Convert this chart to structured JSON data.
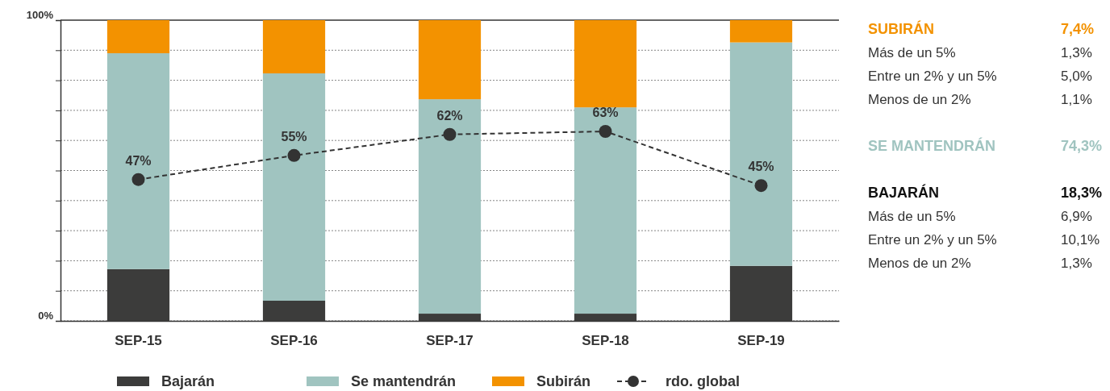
{
  "chart_data": [
    {
      "type": "bar",
      "stacked": true,
      "categories": [
        "SEP-15",
        "SEP-16",
        "SEP-17",
        "SEP-18",
        "SEP-19"
      ],
      "series": [
        {
          "name": "Bajarán",
          "color": "#3c3c3b",
          "values": [
            17.2,
            6.7,
            2.4,
            2.4,
            18.3
          ]
        },
        {
          "name": "Se mantendrán",
          "color": "#a0c4c0",
          "values": [
            71.8,
            75.6,
            71.3,
            68.6,
            74.3
          ]
        },
        {
          "name": "Subirán",
          "color": "#f39200",
          "values": [
            11.0,
            17.7,
            26.3,
            29.0,
            7.4
          ]
        },
        {
          "name": "rdo. global",
          "type": "line",
          "color": "#333333",
          "line_style": "dashed",
          "marker": "circle",
          "values": [
            47,
            55,
            62,
            63,
            45
          ],
          "value_labels": [
            "47%",
            "55%",
            "62%",
            "63%",
            "45%"
          ]
        }
      ],
      "ylim": [
        0,
        100
      ],
      "yticks": [
        {
          "value": 0,
          "label": "0%"
        },
        {
          "value": 10,
          "label": null
        },
        {
          "value": 20,
          "label": null
        },
        {
          "value": 30,
          "label": null
        },
        {
          "value": 40,
          "label": null
        },
        {
          "value": 50,
          "label": null
        },
        {
          "value": 60,
          "label": null
        },
        {
          "value": 70,
          "label": null
        },
        {
          "value": 80,
          "label": null
        },
        {
          "value": 90,
          "label": null
        },
        {
          "value": 100,
          "label": "100%"
        }
      ],
      "grid": "y",
      "legend": "bottom"
    },
    {
      "type": "other",
      "categories": [
        "SUBIRÁN",
        "Más de un 5%",
        "Entre un 2% y un 5%",
        "Menos de un 2%",
        "SE MANTENDRÁN",
        "BAJARÁN",
        "Más de un 5%",
        "Entre un 2% y un 5%",
        "Menos de un 2%"
      ],
      "value_labels": [
        "7,4%",
        "1,3%",
        "5,0%",
        "1,1%",
        "74,3%",
        "18,3%",
        "6,9%",
        "10,1%",
        "1,3%"
      ],
      "colors": [
        "#f39200",
        "#333333",
        "#333333",
        "#333333",
        "#a0c4c0",
        "#111111",
        "#333333",
        "#333333",
        "#333333"
      ]
    }
  ]
}
